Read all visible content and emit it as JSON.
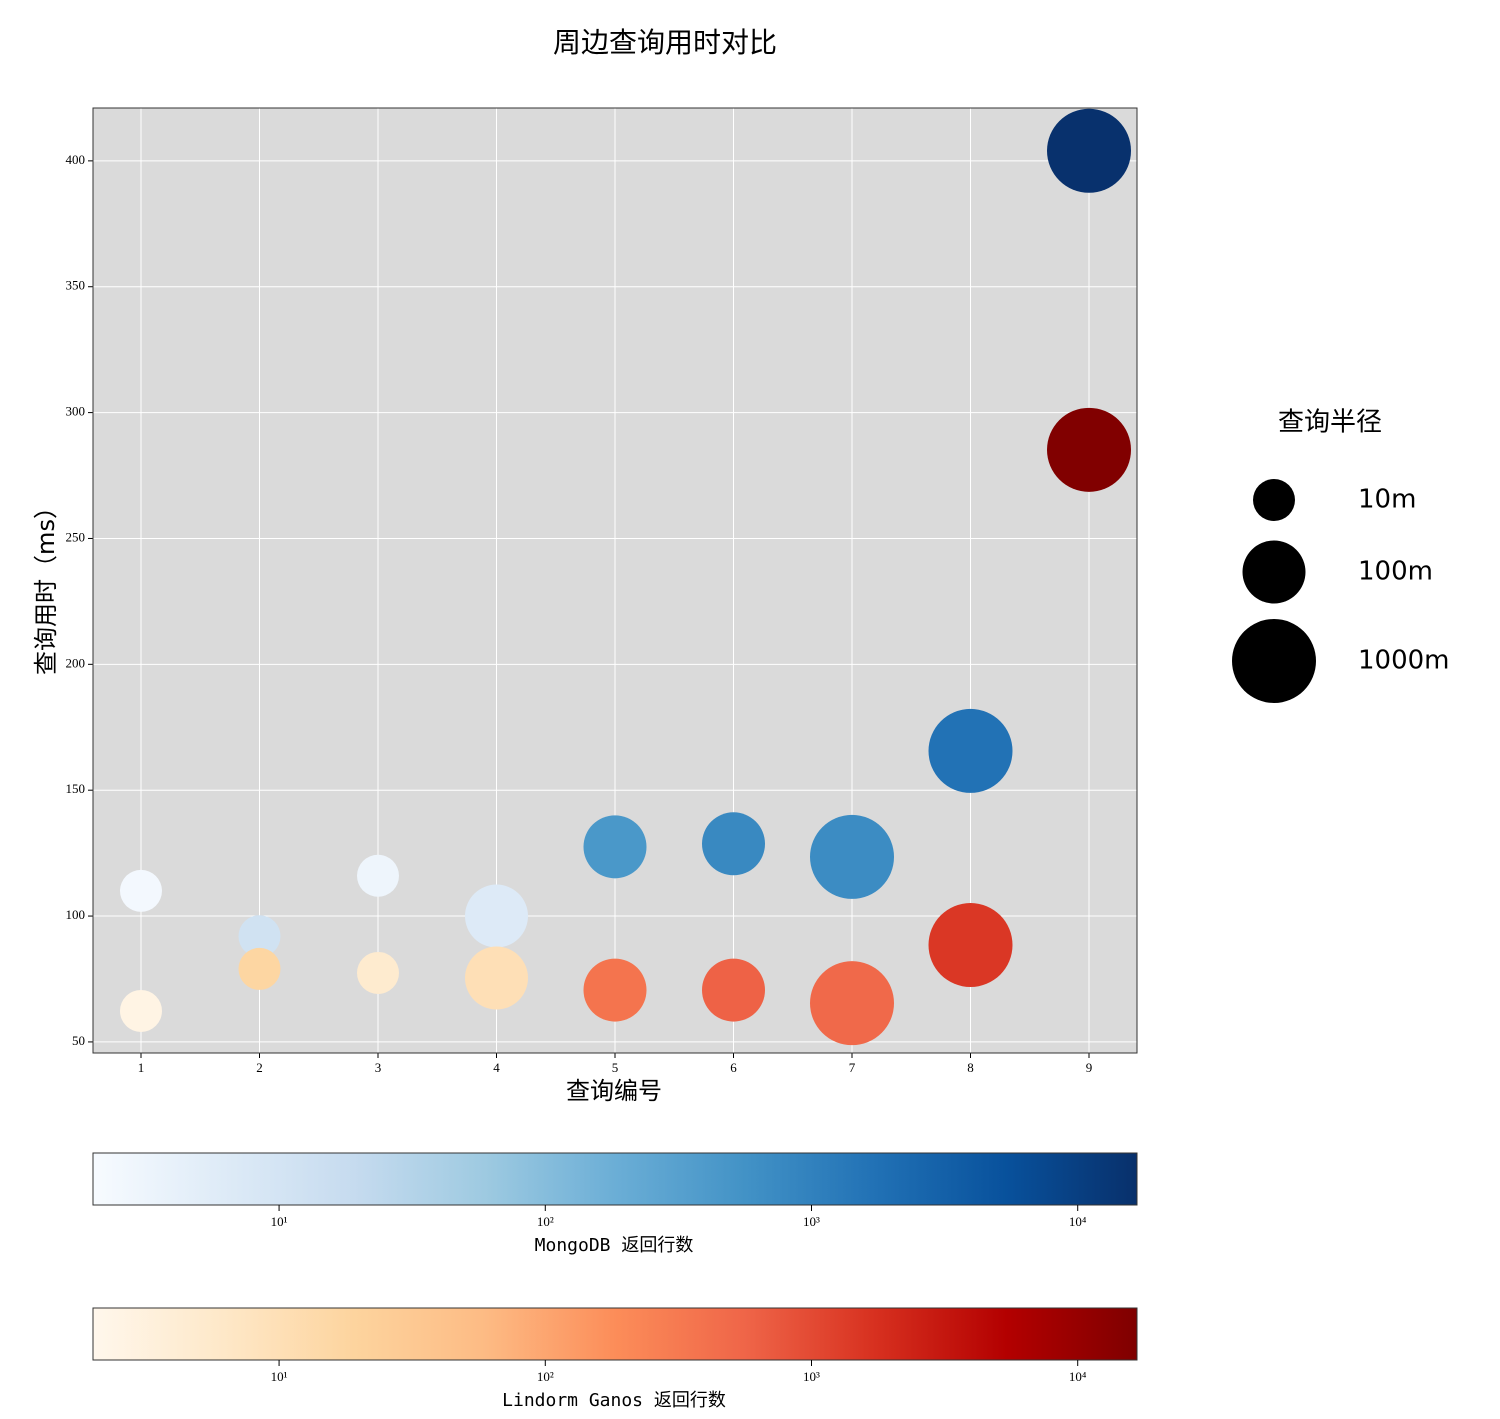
{
  "chart_data": {
    "type": "scatter",
    "title": "周边查询用时对比",
    "x_label": "查询编号",
    "y_label": "查询用时（ms）",
    "x": [
      1,
      2,
      3,
      4,
      5,
      6,
      7,
      8,
      9
    ],
    "xlim": [
      0.595,
      9.405
    ],
    "xticks": [
      1,
      2,
      3,
      4,
      5,
      6,
      7,
      8,
      9
    ],
    "ylim": [
      45.6,
      421
    ],
    "yticks": [
      50,
      100,
      150,
      200,
      250,
      300,
      350,
      400
    ],
    "grid": true,
    "sizes": [
      10,
      10,
      10,
      100,
      100,
      100,
      1000,
      1000,
      1000
    ],
    "size_legend": {
      "title": "查询半径",
      "color": "#000000",
      "entries": [
        {
          "value": 10,
          "label": "10m"
        },
        {
          "value": 100,
          "label": "100m"
        },
        {
          "value": 1000,
          "label": "1000m"
        }
      ]
    },
    "color_scale": "log",
    "clim": [
      2,
      16700
    ],
    "cticks": [
      {
        "value": 10,
        "label": "10¹"
      },
      {
        "value": 100,
        "label": "10²"
      },
      {
        "value": 1000,
        "label": "10³"
      },
      {
        "value": 10000,
        "label": "10⁴"
      }
    ],
    "series": [
      {
        "name": "MongoDB 返回行数",
        "colormap": [
          "#f7fbff",
          "#deebf7",
          "#c6dbef",
          "#9ecae1",
          "#6baed6",
          "#4292c6",
          "#2171b5",
          "#08519c",
          "#08306b"
        ],
        "values": [
          110,
          92,
          116,
          100,
          127.5,
          128.7,
          123.5,
          165.6,
          404
        ],
        "color_values": [
          2.4,
          12,
          3,
          6.5,
          450,
          780,
          700,
          1700,
          16000
        ]
      },
      {
        "name": "Lindorm Ganos 返回行数",
        "colormap": [
          "#fff7ec",
          "#fee8c8",
          "#fdd49e",
          "#fdbb84",
          "#fc8d59",
          "#ef6548",
          "#d7301f",
          "#b30000",
          "#7f0000"
        ],
        "values": [
          62.3,
          79,
          77.4,
          75.4,
          70.6,
          70.6,
          65.4,
          88.5,
          285.2
        ],
        "color_values": [
          2.6,
          17,
          5,
          10,
          370,
          600,
          500,
          1500,
          16000
        ]
      }
    ]
  }
}
